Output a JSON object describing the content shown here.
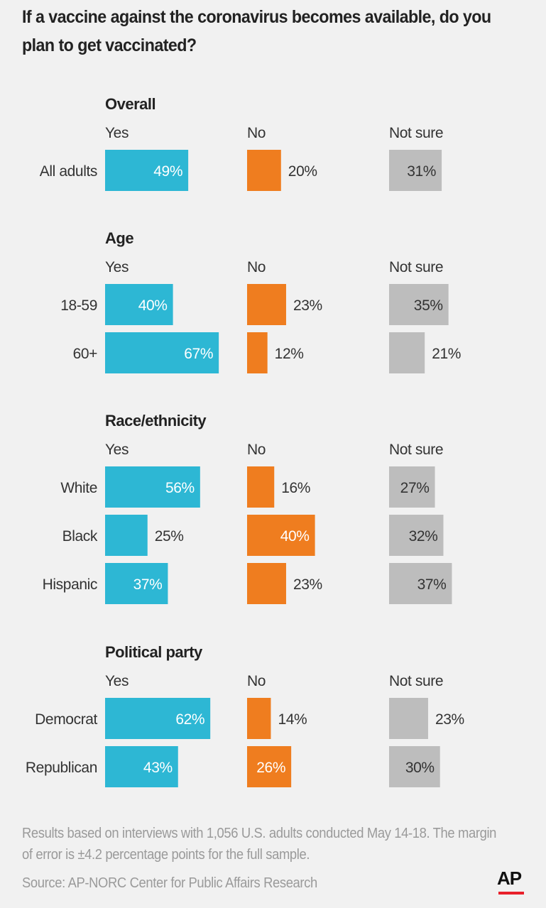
{
  "title": "If a vaccine against the coronavirus becomes available, do you plan to get vaccinated?",
  "colors": {
    "yes": "#2db7d4",
    "no": "#ef7d1f",
    "not_sure": "#bdbdbd"
  },
  "chart_data": {
    "type": "bar",
    "title": "If a vaccine against the coronavirus becomes available, do you plan to get vaccinated?",
    "columns": [
      "Yes",
      "No",
      "Not sure"
    ],
    "unit": "%",
    "groups": [
      {
        "name": "Overall",
        "rows": [
          {
            "label": "All adults",
            "values": [
              49,
              20,
              31
            ]
          }
        ]
      },
      {
        "name": "Age",
        "rows": [
          {
            "label": "18-59",
            "values": [
              40,
              23,
              35
            ]
          },
          {
            "label": "60+",
            "values": [
              67,
              12,
              21
            ]
          }
        ]
      },
      {
        "name": "Race/ethnicity",
        "rows": [
          {
            "label": "White",
            "values": [
              56,
              16,
              27
            ]
          },
          {
            "label": "Black",
            "values": [
              25,
              40,
              32
            ]
          },
          {
            "label": "Hispanic",
            "values": [
              37,
              23,
              37
            ]
          }
        ]
      },
      {
        "name": "Political party",
        "rows": [
          {
            "label": "Democrat",
            "values": [
              62,
              14,
              23
            ]
          },
          {
            "label": "Republican",
            "values": [
              43,
              26,
              30
            ]
          }
        ]
      }
    ]
  },
  "footer": {
    "note": "Results based on interviews with 1,056 U.S. adults conducted May 14-18. The margin of error is ±4.2 percentage points for the full sample.",
    "source": "Source: AP-NORC Center for Public Affairs Research",
    "logo": "AP"
  }
}
